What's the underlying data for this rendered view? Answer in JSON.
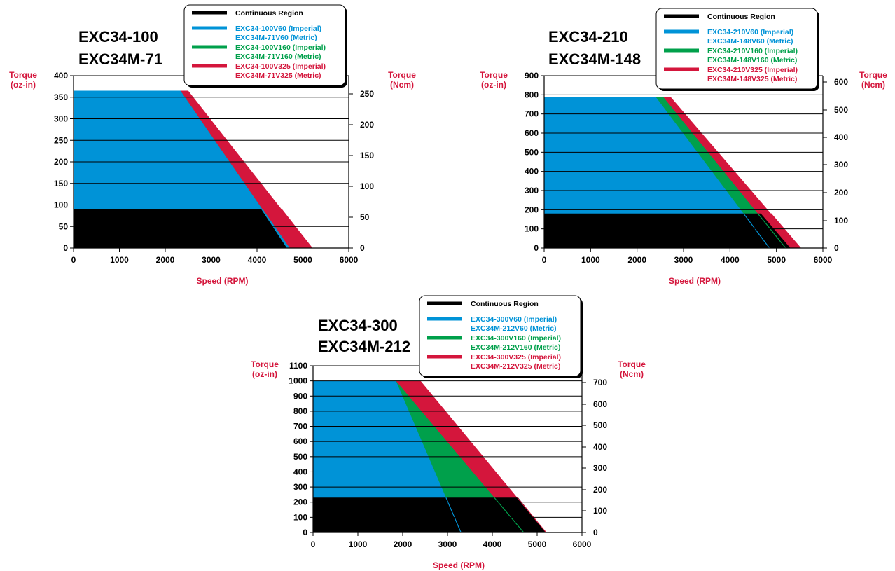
{
  "colors": {
    "continuous": "#000000",
    "v60": "#0093d7",
    "v160": "#00a04b",
    "v325": "#d4163c",
    "axis_label": "#d4163c"
  },
  "chart_data": [
    {
      "type": "area",
      "title_lines": [
        "EXC34-100",
        "EXC34M-71"
      ],
      "xlabel": "Speed (RPM)",
      "ylabel_left": [
        "Torque",
        "(oz-in)"
      ],
      "ylabel_right": [
        "Torque",
        "(Ncm)"
      ],
      "xlim": [
        0,
        6000
      ],
      "ylim": [
        0,
        400
      ],
      "x_ticks": [
        "0",
        "1000",
        "2000",
        "3000",
        "4000",
        "5000",
        "6000"
      ],
      "y_ticks_left": [
        "0",
        "50",
        "100",
        "150",
        "200",
        "250",
        "300",
        "350",
        "400"
      ],
      "y_ticks_right": [
        "0",
        "50",
        "100",
        "150",
        "200",
        "250"
      ],
      "legend_position": "top-right",
      "legend": [
        {
          "key": "continuous",
          "lines": [
            "Continuous Region"
          ]
        },
        {
          "key": "v60",
          "lines": [
            "EXC34-100V60 (Imperial)",
            "EXC34M-71V60 (Metric)"
          ]
        },
        {
          "key": "v160",
          "lines": [
            "EXC34-100V160 (Imperial)",
            "EXC34M-71V160 (Metric)"
          ]
        },
        {
          "key": "v325",
          "lines": [
            "EXC34-100V325 (Imperial)",
            "EXC34M-71V325 (Metric)"
          ]
        }
      ],
      "continuous": {
        "torque": 90,
        "end_rpm": 4650
      },
      "series": [
        {
          "key": "v325",
          "peak_torque": 365,
          "knee_rpm": 2500,
          "end_rpm": 5200
        },
        {
          "key": "v160",
          "peak_torque": 365,
          "knee_rpm": 2330,
          "end_rpm": 4700
        },
        {
          "key": "v60",
          "peak_torque": 365,
          "knee_rpm": 2330,
          "end_rpm": 4700
        }
      ]
    },
    {
      "type": "area",
      "title_lines": [
        "EXC34-210",
        "EXC34M-148"
      ],
      "xlabel": "Speed (RPM)",
      "ylabel_left": [
        "Torque",
        "(oz-in)"
      ],
      "ylabel_right": [
        "Torque",
        "(Ncm)"
      ],
      "xlim": [
        0,
        6000
      ],
      "ylim": [
        0,
        900
      ],
      "x_ticks": [
        "0",
        "1000",
        "2000",
        "3000",
        "4000",
        "5000",
        "6000"
      ],
      "y_ticks_left": [
        "0",
        "100",
        "200",
        "300",
        "400",
        "500",
        "600",
        "700",
        "800",
        "900"
      ],
      "y_ticks_right": [
        "0",
        "100",
        "200",
        "300",
        "400",
        "500",
        "600"
      ],
      "legend_position": "top-right",
      "legend": [
        {
          "key": "continuous",
          "lines": [
            "Continuous Region"
          ]
        },
        {
          "key": "v60",
          "lines": [
            "EXC34-210V60 (Imperial)",
            "EXC34M-148V60 (Metric)"
          ]
        },
        {
          "key": "v160",
          "lines": [
            "EXC34-210V160 (Imperial)",
            "EXC34M-148V160 (Metric)"
          ]
        },
        {
          "key": "v325",
          "lines": [
            "EXC34-210V325 (Imperial)",
            "EXC34M-148V325 (Metric)"
          ]
        }
      ],
      "continuous": {
        "torque": 180,
        "end_rpm": 5300
      },
      "series": [
        {
          "key": "v325",
          "peak_torque": 790,
          "knee_rpm": 2720,
          "end_rpm": 5520
        },
        {
          "key": "v160",
          "peak_torque": 790,
          "knee_rpm": 2560,
          "end_rpm": 5200
        },
        {
          "key": "v60",
          "peak_torque": 790,
          "knee_rpm": 2400,
          "end_rpm": 4850
        }
      ]
    },
    {
      "type": "area",
      "title_lines": [
        "EXC34-300",
        "EXC34M-212"
      ],
      "xlabel": "Speed (RPM)",
      "ylabel_left": [
        "Torque",
        "(oz-in)"
      ],
      "ylabel_right": [
        "Torque",
        "(Ncm)"
      ],
      "xlim": [
        0,
        6000
      ],
      "ylim": [
        0,
        1100
      ],
      "x_ticks": [
        "0",
        "1000",
        "2000",
        "3000",
        "4000",
        "5000",
        "6000"
      ],
      "y_ticks_left": [
        "0",
        "100",
        "200",
        "300",
        "400",
        "500",
        "600",
        "700",
        "800",
        "900",
        "1000",
        "1100"
      ],
      "y_ticks_right": [
        "0",
        "100",
        "200",
        "300",
        "400",
        "500",
        "600",
        "700"
      ],
      "legend_position": "top-right",
      "legend": [
        {
          "key": "continuous",
          "lines": [
            "Continuous Region"
          ]
        },
        {
          "key": "v60",
          "lines": [
            "EXC34-300V60 (Imperial)",
            "EXC34M-212V60 (Metric)"
          ]
        },
        {
          "key": "v160",
          "lines": [
            "EXC34-300V160 (Imperial)",
            "EXC34M-212V160 (Metric)"
          ]
        },
        {
          "key": "v325",
          "lines": [
            "EXC34-300V325 (Imperial)",
            "EXC34M-212V325 (Metric)"
          ]
        }
      ],
      "continuous": {
        "torque": 230,
        "end_rpm": 5200
      },
      "series": [
        {
          "key": "v325",
          "peak_torque": 1000,
          "knee_rpm": 2400,
          "end_rpm": 5200
        },
        {
          "key": "v160",
          "peak_torque": 1000,
          "knee_rpm": 1850,
          "end_rpm": 4700
        },
        {
          "key": "v60",
          "peak_torque": 1000,
          "knee_rpm": 1850,
          "end_rpm": 3300
        }
      ]
    }
  ]
}
